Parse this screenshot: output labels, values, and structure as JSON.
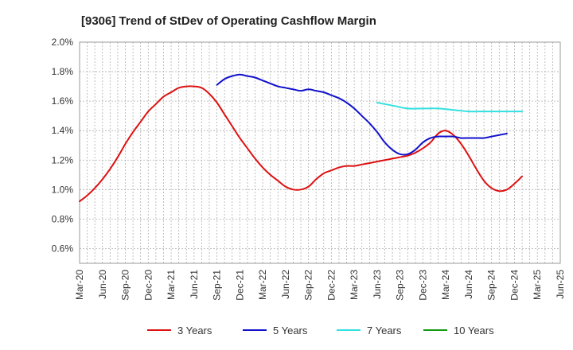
{
  "chart_data": {
    "type": "line",
    "title": "[9306]  Trend of StDev of Operating Cashflow Margin",
    "xlabel": "",
    "ylabel": "",
    "x_ticks": [
      "Mar-20",
      "Jun-20",
      "Sep-20",
      "Dec-20",
      "Mar-21",
      "Jun-21",
      "Sep-21",
      "Dec-21",
      "Mar-22",
      "Jun-22",
      "Sep-22",
      "Dec-22",
      "Mar-23",
      "Jun-23",
      "Sep-23",
      "Dec-23",
      "Mar-24",
      "Jun-24",
      "Sep-24",
      "Dec-24",
      "Mar-25",
      "Jun-25"
    ],
    "y_ticks": [
      "0.6%",
      "0.8%",
      "1.0%",
      "1.2%",
      "1.4%",
      "1.6%",
      "1.8%",
      "2.0%"
    ],
    "ylim": [
      0.5,
      2.0
    ],
    "grid": true,
    "legend_position": "bottom",
    "series": [
      {
        "name": "3 Years",
        "color": "#dd1111",
        "points": [
          [
            0,
            0.92
          ],
          [
            1,
            0.96
          ],
          [
            2,
            1.01
          ],
          [
            3,
            1.07
          ],
          [
            4,
            1.14
          ],
          [
            5,
            1.22
          ],
          [
            6,
            1.31
          ],
          [
            7,
            1.39
          ],
          [
            8,
            1.46
          ],
          [
            9,
            1.53
          ],
          [
            10,
            1.58
          ],
          [
            11,
            1.63
          ],
          [
            12,
            1.66
          ],
          [
            13,
            1.69
          ],
          [
            14,
            1.7
          ],
          [
            15,
            1.7
          ],
          [
            16,
            1.69
          ],
          [
            17,
            1.65
          ],
          [
            18,
            1.59
          ],
          [
            19,
            1.51
          ],
          [
            20,
            1.43
          ],
          [
            21,
            1.35
          ],
          [
            22,
            1.28
          ],
          [
            23,
            1.21
          ],
          [
            24,
            1.15
          ],
          [
            25,
            1.1
          ],
          [
            26,
            1.06
          ],
          [
            27,
            1.02
          ],
          [
            28,
            1.0
          ],
          [
            29,
            1.0
          ],
          [
            30,
            1.02
          ],
          [
            31,
            1.07
          ],
          [
            32,
            1.11
          ],
          [
            33,
            1.13
          ],
          [
            34,
            1.15
          ],
          [
            35,
            1.16
          ],
          [
            36,
            1.16
          ],
          [
            37,
            1.17
          ],
          [
            38,
            1.18
          ],
          [
            39,
            1.19
          ],
          [
            40,
            1.2
          ],
          [
            41,
            1.21
          ],
          [
            42,
            1.22
          ],
          [
            43,
            1.23
          ],
          [
            44,
            1.25
          ],
          [
            45,
            1.28
          ],
          [
            46,
            1.32
          ],
          [
            47,
            1.38
          ],
          [
            48,
            1.4
          ],
          [
            49,
            1.37
          ],
          [
            50,
            1.31
          ],
          [
            51,
            1.23
          ],
          [
            52,
            1.14
          ],
          [
            53,
            1.06
          ],
          [
            54,
            1.01
          ],
          [
            55,
            0.99
          ],
          [
            56,
            1.0
          ],
          [
            57,
            1.04
          ],
          [
            58,
            1.09
          ]
        ]
      },
      {
        "name": "5 Years",
        "color": "#1111cc",
        "points": [
          [
            18,
            1.71
          ],
          [
            19,
            1.75
          ],
          [
            20,
            1.77
          ],
          [
            21,
            1.78
          ],
          [
            22,
            1.77
          ],
          [
            23,
            1.76
          ],
          [
            24,
            1.74
          ],
          [
            25,
            1.72
          ],
          [
            26,
            1.7
          ],
          [
            27,
            1.69
          ],
          [
            28,
            1.68
          ],
          [
            29,
            1.67
          ],
          [
            30,
            1.68
          ],
          [
            31,
            1.67
          ],
          [
            32,
            1.66
          ],
          [
            33,
            1.64
          ],
          [
            34,
            1.62
          ],
          [
            35,
            1.59
          ],
          [
            36,
            1.55
          ],
          [
            37,
            1.5
          ],
          [
            38,
            1.45
          ],
          [
            39,
            1.39
          ],
          [
            40,
            1.32
          ],
          [
            41,
            1.27
          ],
          [
            42,
            1.24
          ],
          [
            43,
            1.24
          ],
          [
            44,
            1.27
          ],
          [
            45,
            1.32
          ],
          [
            46,
            1.35
          ],
          [
            47,
            1.36
          ],
          [
            48,
            1.36
          ],
          [
            49,
            1.36
          ],
          [
            50,
            1.35
          ],
          [
            51,
            1.35
          ],
          [
            52,
            1.35
          ],
          [
            53,
            1.35
          ],
          [
            54,
            1.36
          ],
          [
            55,
            1.37
          ],
          [
            56,
            1.38
          ]
        ]
      },
      {
        "name": "7 Years",
        "color": "#33e0e0",
        "points": [
          [
            39,
            1.59
          ],
          [
            41,
            1.57
          ],
          [
            43,
            1.55
          ],
          [
            45,
            1.55
          ],
          [
            47,
            1.55
          ],
          [
            49,
            1.54
          ],
          [
            51,
            1.53
          ],
          [
            53,
            1.53
          ],
          [
            55,
            1.53
          ],
          [
            58,
            1.53
          ]
        ]
      },
      {
        "name": "10 Years",
        "color": "#119911",
        "points": []
      }
    ]
  }
}
